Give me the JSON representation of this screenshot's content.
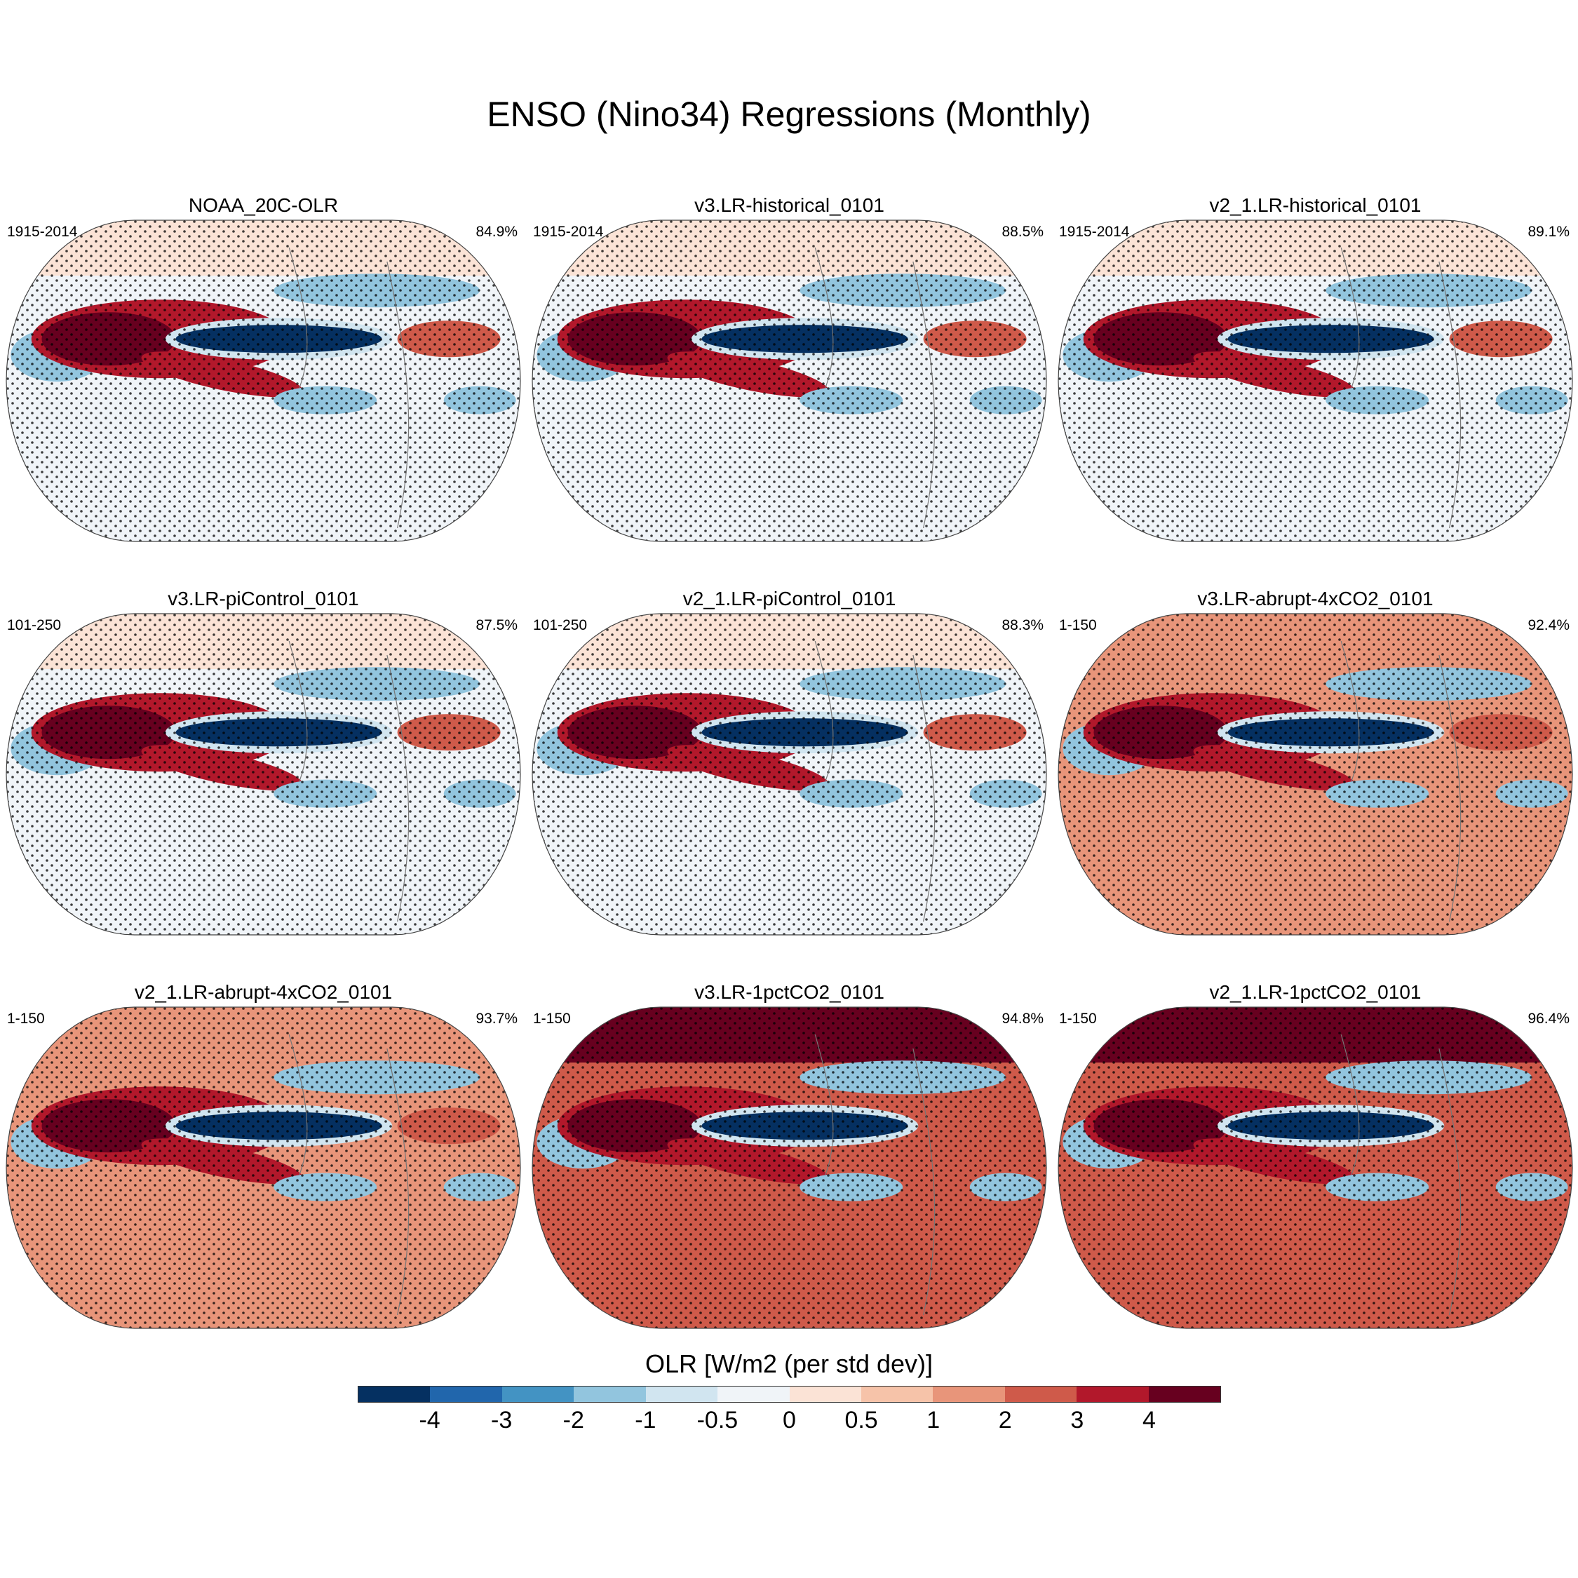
{
  "title": "ENSO (Nino34) Regressions (Monthly)",
  "panels": [
    {
      "title": "NOAA_20C-OLR",
      "period": "1915-2014",
      "pct": "84.9%",
      "tone": "neutral"
    },
    {
      "title": "v3.LR-historical_0101",
      "period": "1915-2014",
      "pct": "88.5%",
      "tone": "neutral"
    },
    {
      "title": "v2_1.LR-historical_0101",
      "period": "1915-2014",
      "pct": "89.1%",
      "tone": "neutral"
    },
    {
      "title": "v3.LR-piControl_0101",
      "period": "101-250",
      "pct": "87.5%",
      "tone": "neutral"
    },
    {
      "title": "v2_1.LR-piControl_0101",
      "period": "101-250",
      "pct": "88.3%",
      "tone": "neutral"
    },
    {
      "title": "v3.LR-abrupt-4xCO2_0101",
      "period": "1-150",
      "pct": "92.4%",
      "tone": "warm"
    },
    {
      "title": "v2_1.LR-abrupt-4xCO2_0101",
      "period": "1-150",
      "pct": "93.7%",
      "tone": "warm"
    },
    {
      "title": "v3.LR-1pctCO2_0101",
      "period": "1-150",
      "pct": "94.8%",
      "tone": "hot"
    },
    {
      "title": "v2_1.LR-1pctCO2_0101",
      "period": "1-150",
      "pct": "96.4%",
      "tone": "hot"
    }
  ],
  "colorbar": {
    "label": "OLR [W/m2 (per std dev)]",
    "colors": [
      "#053061",
      "#2166ac",
      "#4393c3",
      "#92c5de",
      "#d1e5f0",
      "#f0f4f8",
      "#fbe3d6",
      "#f6c3a9",
      "#e8957a",
      "#cf5a4a",
      "#b2182b",
      "#67001f"
    ],
    "ticks": [
      "-4",
      "-3",
      "-2",
      "-1",
      "-0.5",
      "0",
      "0.5",
      "1",
      "2",
      "3",
      "4"
    ]
  }
}
